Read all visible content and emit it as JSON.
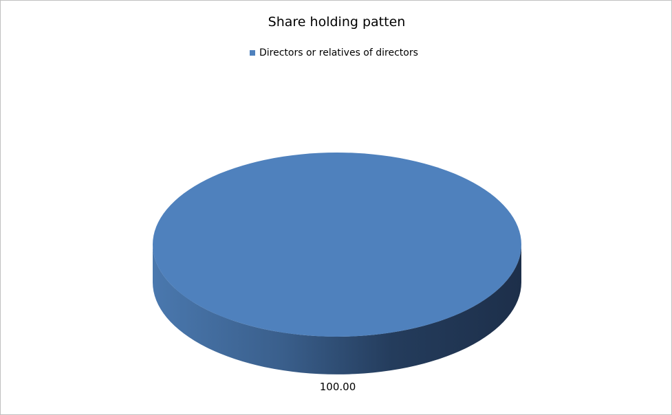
{
  "chart_data": {
    "type": "pie",
    "style": "3d",
    "title": "Share holding patten",
    "categories": [
      "Directors or relatives of directors"
    ],
    "values": [
      100.0
    ],
    "data_labels": [
      "100.00"
    ],
    "legend_position": "top",
    "colors": [
      "#4f81bd"
    ]
  }
}
